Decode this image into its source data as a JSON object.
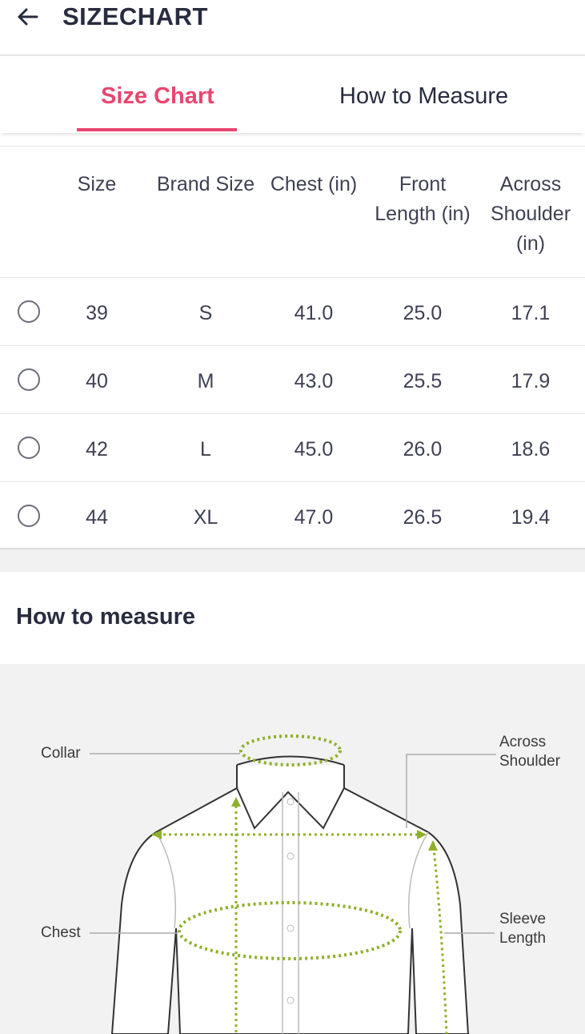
{
  "header": {
    "title": "SIZECHART",
    "back_icon": "arrow-left-icon"
  },
  "tabs": [
    {
      "label": "Size Chart",
      "active": true
    },
    {
      "label": "How to Measure",
      "active": false
    }
  ],
  "table": {
    "columns": [
      "Size",
      "Brand Size",
      "Chest (in)",
      "Front Length (in)",
      "Across Shoulder (in)"
    ],
    "column_lines": {
      "size": [
        "Size"
      ],
      "brand": [
        "Brand Size"
      ],
      "chest": [
        "Chest (in)"
      ],
      "front": [
        "Front",
        "Length (in)"
      ],
      "across": [
        "Across",
        "Shoulder",
        "(in)"
      ]
    },
    "rows": [
      {
        "size": "39",
        "brand": "S",
        "chest": "41.0",
        "front": "25.0",
        "across": "17.1"
      },
      {
        "size": "40",
        "brand": "M",
        "chest": "43.0",
        "front": "25.5",
        "across": "17.9"
      },
      {
        "size": "42",
        "brand": "L",
        "chest": "45.0",
        "front": "26.0",
        "across": "18.6"
      },
      {
        "size": "44",
        "brand": "XL",
        "chest": "47.0",
        "front": "26.5",
        "across": "19.4"
      }
    ]
  },
  "measure": {
    "title": "How to measure",
    "labels": {
      "collar": "Collar",
      "chest": "Chest",
      "across_shoulder": [
        "Across",
        "Shoulder"
      ],
      "sleeve_length": [
        "Sleeve",
        "Length"
      ]
    }
  },
  "colors": {
    "accent": "#e8466f",
    "measure_line": "#8fb02b",
    "text": "#282c3f"
  }
}
